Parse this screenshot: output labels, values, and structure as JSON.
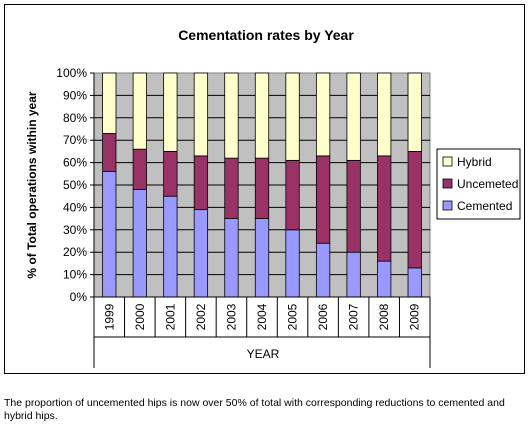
{
  "caption": "The proportion of uncemented hips is now over 50% of total with corresponding reductions to cemented and hybrid hips.",
  "chart_data": {
    "type": "bar",
    "stacked": true,
    "percent_stacked": true,
    "title": "Cementation rates by Year",
    "xlabel": "YEAR",
    "ylabel": "% of Total operations within year",
    "ylim": [
      0,
      100
    ],
    "yticks": [
      "0%",
      "10%",
      "20%",
      "30%",
      "40%",
      "50%",
      "60%",
      "70%",
      "80%",
      "90%",
      "100%"
    ],
    "grid": true,
    "legend_position": "right",
    "categories": [
      "1999",
      "2000",
      "2001",
      "2002",
      "2003",
      "2004",
      "2005",
      "2006",
      "2007",
      "2008",
      "2009"
    ],
    "series": [
      {
        "name": "Cemented",
        "color": "#9999ff",
        "values": [
          56,
          48,
          45,
          39,
          35,
          35,
          30,
          24,
          20,
          16,
          13
        ]
      },
      {
        "name": "Uncemeted",
        "color": "#993366",
        "values": [
          17,
          18,
          20,
          24,
          27,
          27,
          31,
          39,
          41,
          47,
          52
        ]
      },
      {
        "name": "Hybrid",
        "color": "#ffffcc",
        "values": [
          27,
          34,
          35,
          37,
          38,
          38,
          39,
          37,
          39,
          37,
          35
        ]
      }
    ],
    "legend_order": [
      "Hybrid",
      "Uncemeted",
      "Cemented"
    ],
    "plot_background": "#c0c0c0"
  }
}
